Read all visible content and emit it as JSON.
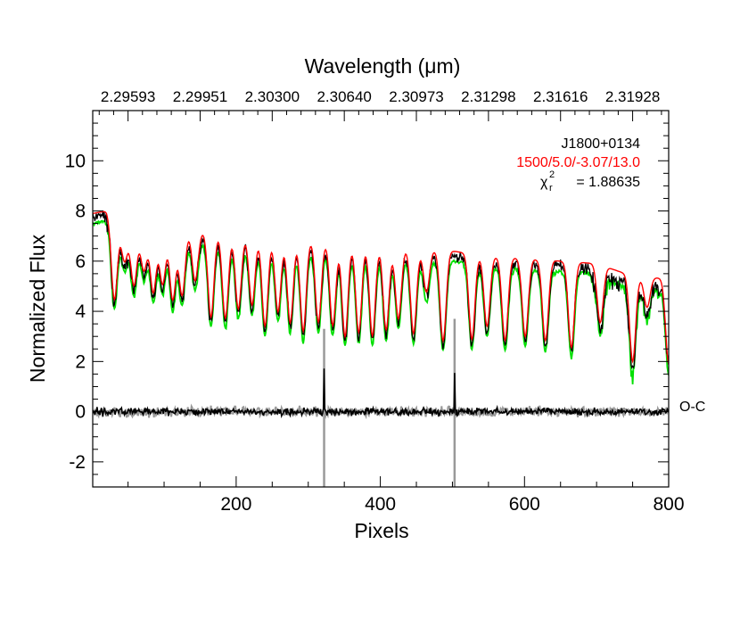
{
  "chart_data": {
    "type": "line",
    "xlabel": "Pixels",
    "ylabel": "Normalized Flux",
    "top_xlabel": "Wavelength (μm)",
    "xlim": [
      1,
      800
    ],
    "ylim": [
      -3,
      12
    ],
    "x_ticks": [
      200,
      400,
      600,
      800
    ],
    "x_tick_labels": [
      "200",
      "400",
      "600",
      "800"
    ],
    "y_ticks": [
      -2,
      0,
      2,
      4,
      6,
      8,
      10
    ],
    "y_tick_labels": [
      "-2",
      "0",
      "2",
      "4",
      "6",
      "8",
      "10"
    ],
    "top_ticks": [
      {
        "x": 50,
        "label": "2.29593"
      },
      {
        "x": 150,
        "label": "2.29951"
      },
      {
        "x": 250,
        "label": "2.30300"
      },
      {
        "x": 350,
        "label": "2.30640"
      },
      {
        "x": 450,
        "label": "2.30973"
      },
      {
        "x": 550,
        "label": "2.31298"
      },
      {
        "x": 650,
        "label": "2.31616"
      },
      {
        "x": 750,
        "label": "2.31928"
      }
    ],
    "annotations": {
      "object": "J1800+0134",
      "model": "1500/5.0/-3.07/13.0",
      "chi2_symbol": "χ",
      "chi2_sup": "2",
      "chi2_sub": "r",
      "chi2_value": "= 1.88635",
      "residual_label": "O-C"
    },
    "colors": {
      "observed": "#000000",
      "model": "#ff0000",
      "model_alt": "#00e000",
      "residual": "#000000",
      "noise": "#999999"
    },
    "continuum": {
      "x": [
        1,
        20,
        40,
        60,
        100,
        150,
        200,
        250,
        300,
        350,
        400,
        450,
        500,
        550,
        600,
        650,
        700,
        750,
        800
      ],
      "y": [
        7.9,
        8.0,
        7.6,
        7.2,
        7.3,
        7.2,
        7.1,
        7.0,
        6.9,
        6.8,
        6.7,
        6.5,
        6.4,
        6.2,
        6.1,
        6.0,
        5.9,
        5.4,
        5.3
      ]
    },
    "absorption_lines": [
      {
        "x": 31,
        "depth": 3.3
      },
      {
        "x": 45,
        "depth": 1.5
      },
      {
        "x": 58,
        "depth": 2.2
      },
      {
        "x": 72,
        "depth": 1.6
      },
      {
        "x": 85,
        "depth": 2.5
      },
      {
        "x": 98,
        "depth": 2.2
      },
      {
        "x": 112,
        "depth": 2.8
      },
      {
        "x": 125,
        "depth": 2.6
      },
      {
        "x": 143,
        "depth": 2.0
      },
      {
        "x": 165,
        "depth": 3.4
      },
      {
        "x": 185,
        "depth": 3.4
      },
      {
        "x": 203,
        "depth": 3.0
      },
      {
        "x": 222,
        "depth": 2.8
      },
      {
        "x": 240,
        "depth": 3.6
      },
      {
        "x": 258,
        "depth": 3.0
      },
      {
        "x": 275,
        "depth": 3.4
      },
      {
        "x": 293,
        "depth": 3.7
      },
      {
        "x": 314,
        "depth": 3.3
      },
      {
        "x": 334,
        "depth": 3.4
      },
      {
        "x": 351,
        "depth": 3.8
      },
      {
        "x": 370,
        "depth": 3.6
      },
      {
        "x": 389,
        "depth": 3.7
      },
      {
        "x": 408,
        "depth": 3.4
      },
      {
        "x": 425,
        "depth": 2.9
      },
      {
        "x": 446,
        "depth": 3.4
      },
      {
        "x": 464,
        "depth": 1.7
      },
      {
        "x": 487,
        "depth": 3.6
      },
      {
        "x": 527,
        "depth": 3.4
      },
      {
        "x": 548,
        "depth": 2.8
      },
      {
        "x": 573,
        "depth": 3.3
      },
      {
        "x": 601,
        "depth": 3.1
      },
      {
        "x": 629,
        "depth": 3.2
      },
      {
        "x": 665,
        "depth": 3.4
      },
      {
        "x": 705,
        "depth": 2.3
      },
      {
        "x": 750,
        "depth": 3.4
      },
      {
        "x": 770,
        "depth": 1.2
      },
      {
        "x": 800,
        "depth": 3.4
      }
    ],
    "residual_spikes": [
      {
        "x": 322,
        "height": 1.7
      },
      {
        "x": 503,
        "height": 1.6
      }
    ],
    "noise_spikes": [
      {
        "x": 322,
        "ymin": -3.2,
        "ymax": 3.3
      },
      {
        "x": 503,
        "ymin": -3.2,
        "ymax": 3.7
      }
    ]
  }
}
